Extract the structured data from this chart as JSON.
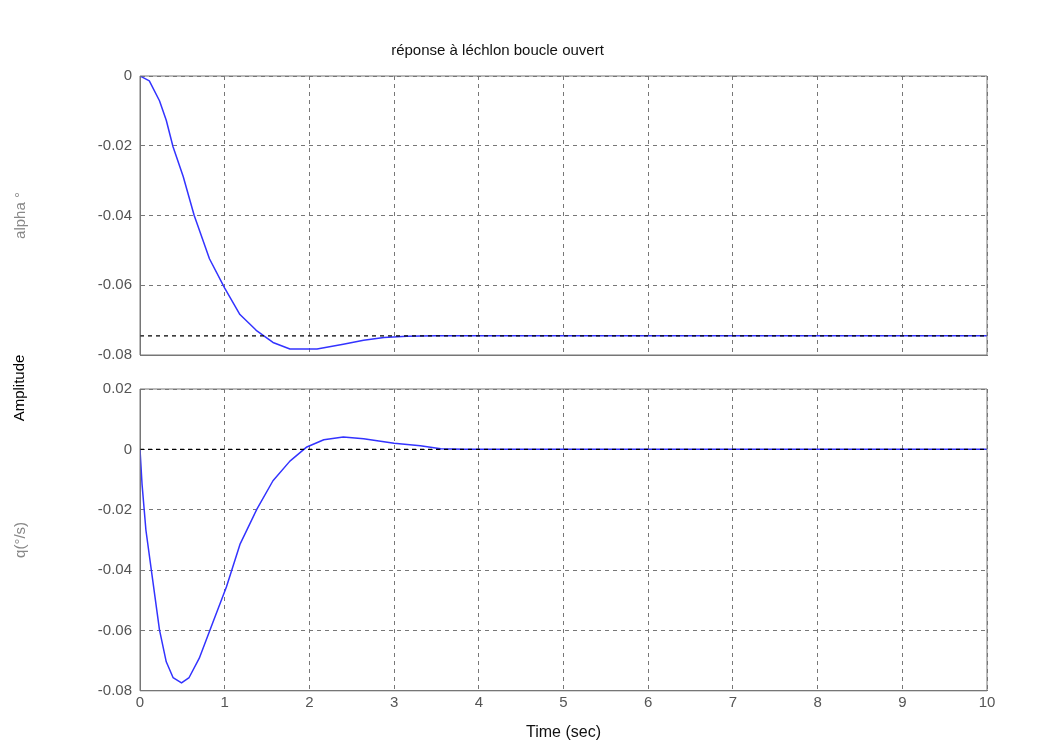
{
  "chart_data": [
    {
      "type": "line",
      "title": "réponse à léchlon boucle ouvert",
      "ylabel": "alpha °",
      "annotations": [
        "Amplitude"
      ],
      "x": [
        0,
        0.11,
        0.23,
        0.31,
        0.39,
        0.51,
        0.64,
        0.82,
        1.0,
        1.18,
        1.38,
        1.57,
        1.77,
        2.09,
        2.4,
        2.64,
        2.88,
        3.15,
        3.5,
        5,
        10
      ],
      "series": [
        {
          "color": "#3333ff",
          "values": [
            0,
            -0.0014,
            -0.0071,
            -0.0127,
            -0.0203,
            -0.0288,
            -0.04,
            -0.0524,
            -0.0608,
            -0.0684,
            -0.0731,
            -0.0764,
            -0.0783,
            -0.0783,
            -0.0769,
            -0.0758,
            -0.075,
            -0.0746,
            -0.0745,
            -0.0745,
            -0.0745
          ]
        }
      ],
      "xlim": [
        0,
        10
      ],
      "xticks": [
        0,
        1,
        2,
        3,
        4,
        5,
        6,
        7,
        8,
        9,
        10
      ],
      "ylim": [
        -0.08,
        0
      ],
      "yticks": [
        -0.08,
        -0.06,
        -0.04,
        -0.02,
        0
      ],
      "ref_lines": [
        {
          "axis": "y",
          "value": -0.0745,
          "color": "#000000",
          "line_style": "dashed"
        }
      ],
      "grid": true,
      "legend": false,
      "tick_labels": "y",
      "line_style": "solid",
      "marker": "none"
    },
    {
      "type": "line",
      "ylabel": "q(°/s)",
      "xlabel": "Time (sec)",
      "x": [
        0,
        0.024,
        0.07,
        0.15,
        0.23,
        0.31,
        0.39,
        0.49,
        0.58,
        0.7,
        0.86,
        1.02,
        1.18,
        1.38,
        1.57,
        1.77,
        1.97,
        2.17,
        2.4,
        2.64,
        3.0,
        3.31,
        3.55,
        3.83,
        5,
        10
      ],
      "series": [
        {
          "color": "#3333ff",
          "values": [
            0,
            -0.0115,
            -0.0268,
            -0.0433,
            -0.0598,
            -0.0704,
            -0.0756,
            -0.0774,
            -0.0756,
            -0.0692,
            -0.0574,
            -0.0456,
            -0.0315,
            -0.0198,
            -0.0104,
            -0.0039,
            0.0008,
            0.0032,
            0.0041,
            0.0035,
            0.002,
            0.0012,
            0.0002,
            0,
            0,
            0
          ]
        }
      ],
      "xlim": [
        0,
        10
      ],
      "xticks": [
        0,
        1,
        2,
        3,
        4,
        5,
        6,
        7,
        8,
        9,
        10
      ],
      "ylim": [
        -0.08,
        0.02
      ],
      "yticks": [
        -0.08,
        -0.06,
        -0.04,
        -0.02,
        0,
        0.02
      ],
      "ref_lines": [
        {
          "axis": "y",
          "value": 0,
          "color": "#000000",
          "line_style": "dashed"
        }
      ],
      "grid": true,
      "legend": false,
      "line_style": "solid",
      "marker": "none"
    }
  ]
}
